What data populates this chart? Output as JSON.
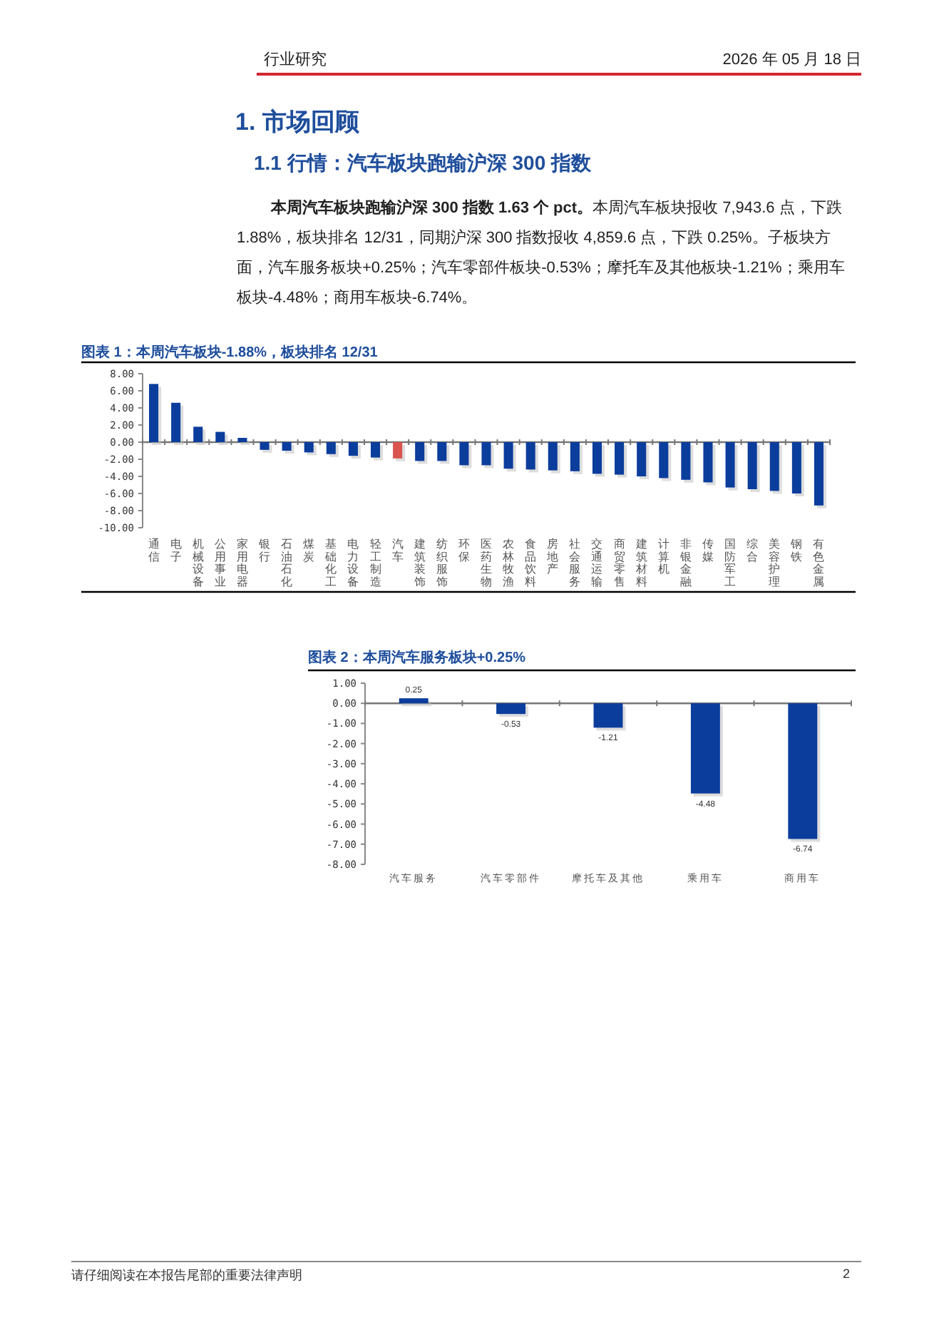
{
  "chart_data": [
    {
      "type": "bar",
      "title": "图表 1：本周汽车板块-1.88%，板块排名 12/31",
      "categories": [
        "通信",
        "电子",
        "机械设备",
        "公用事业",
        "家用电器",
        "银行",
        "石油石化",
        "煤炭",
        "基础化工",
        "电力设备",
        "轻工制造",
        "汽车",
        "建筑装饰",
        "纺织服饰",
        "环保",
        "医药生物",
        "农林牧渔",
        "食品饮料",
        "房地产",
        "社会服务",
        "交通运输",
        "商贸零售",
        "建筑材料",
        "计算机",
        "非银金融",
        "传媒",
        "国防军工",
        "综合",
        "美容护理",
        "钢铁",
        "有色金属"
      ],
      "values": [
        6.8,
        4.6,
        1.8,
        1.2,
        0.5,
        -0.9,
        -1.0,
        -1.2,
        -1.4,
        -1.6,
        -1.8,
        -1.9,
        -2.2,
        -2.2,
        -2.7,
        -2.7,
        -3.1,
        -3.2,
        -3.3,
        -3.4,
        -3.7,
        -3.8,
        -4.0,
        -4.2,
        -4.4,
        -4.7,
        -5.3,
        -5.5,
        -5.7,
        -6.0,
        -7.4
      ],
      "colors": [
        "#0b3d9c",
        "#0b3d9c",
        "#0b3d9c",
        "#0b3d9c",
        "#0b3d9c",
        "#0b3d9c",
        "#0b3d9c",
        "#0b3d9c",
        "#0b3d9c",
        "#0b3d9c",
        "#0b3d9c",
        "#d9534f",
        "#0b3d9c",
        "#0b3d9c",
        "#0b3d9c",
        "#0b3d9c",
        "#0b3d9c",
        "#0b3d9c",
        "#0b3d9c",
        "#0b3d9c",
        "#0b3d9c",
        "#0b3d9c",
        "#0b3d9c",
        "#0b3d9c",
        "#0b3d9c",
        "#0b3d9c",
        "#0b3d9c",
        "#0b3d9c",
        "#0b3d9c",
        "#0b3d9c",
        "#0b3d9c"
      ],
      "ylim": [
        -10,
        8
      ],
      "yticks": [
        {
          "value": 8,
          "label": "8.00"
        },
        {
          "value": 6,
          "label": "6.00"
        },
        {
          "value": 4,
          "label": "4.00"
        },
        {
          "value": 2,
          "label": "2.00"
        },
        {
          "value": 0,
          "label": "0.00"
        },
        {
          "value": -2,
          "label": "-2.00"
        },
        {
          "value": -4,
          "label": "-4.00"
        },
        {
          "value": -6,
          "label": "-6.00"
        },
        {
          "value": -8,
          "label": "-8.00"
        },
        {
          "value": -10,
          "label": "-10.00"
        }
      ],
      "annotations": [
        "行业研究",
        "2026 年 05 月 18 日",
        "1.  市场回顾",
        "1.1 行情：汽车板块跑输沪深 300 指数",
        "本周汽车板块跑输沪深 300 指数 1.63 个 pct。",
        "本周汽车板块报收 7,943.6 点，下跌 1.88%，板块排名 12/31，同期沪深 300 指数报收 4,859.6 点，下跌 0.25%。子板块方面，汽车服务板块+0.25%；汽车零部件板块-0.53%；摩托车及其他板块-1.21%；乘用车板块-4.48%；商用车板块-6.74%。",
        "请仔细阅读在本报告尾部的重要法律声明",
        "2"
      ]
    },
    {
      "type": "bar",
      "title": "图表 2：本周汽车服务板块+0.25%",
      "categories": [
        "汽车服务",
        "汽车零部件",
        "摩托车及其他",
        "乘用车",
        "商用车"
      ],
      "values": [
        0.25,
        -0.53,
        -1.21,
        -4.48,
        -6.74
      ],
      "colors": [
        "#0b3d9c",
        "#0b3d9c",
        "#0b3d9c",
        "#0b3d9c",
        "#0b3d9c"
      ],
      "ylim": [
        -8,
        1
      ],
      "yticks": [
        {
          "value": 1,
          "label": "1.00"
        },
        {
          "value": 0,
          "label": "0.00"
        },
        {
          "value": -1,
          "label": "-1.00"
        },
        {
          "value": -2,
          "label": "-2.00"
        },
        {
          "value": -3,
          "label": "-3.00"
        },
        {
          "value": -4,
          "label": "-4.00"
        },
        {
          "value": -5,
          "label": "-5.00"
        },
        {
          "value": -6,
          "label": "-6.00"
        },
        {
          "value": -7,
          "label": "-7.00"
        },
        {
          "value": -8,
          "label": "-8.00"
        }
      ],
      "data_labels": true
    }
  ]
}
